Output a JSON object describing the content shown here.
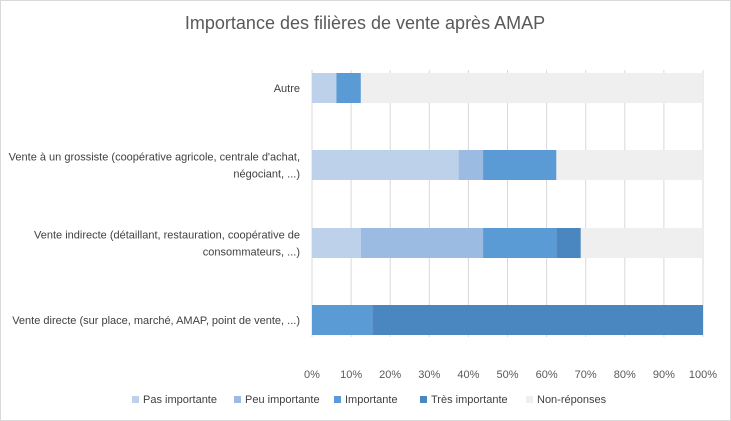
{
  "chart_data": {
    "type": "bar",
    "orientation": "horizontal",
    "stacked": true,
    "title": "Importance des filières de vente après AMAP",
    "xlabel": "",
    "ylabel": "",
    "xlim": [
      0,
      100
    ],
    "x_tick_labels": [
      "0%",
      "10%",
      "20%",
      "30%",
      "40%",
      "50%",
      "60%",
      "70%",
      "80%",
      "90%",
      "100%"
    ],
    "grid": true,
    "legend_position": "bottom",
    "categories": [
      {
        "lines": [
          "Autre"
        ]
      },
      {
        "lines": [
          "Vente à un grossiste (coopérative agricole, centrale d'achat,",
          "négociant, ...)"
        ]
      },
      {
        "lines": [
          "Vente indirecte (détaillant, restauration, coopérative de",
          "consommateurs, ...)"
        ]
      },
      {
        "lines": [
          "Vente directe (sur place, marché, AMAP, point de vente, ...)"
        ]
      }
    ],
    "series": [
      {
        "name": "Pas importante",
        "color": "#bdd1ea",
        "values": [
          6.25,
          37.5,
          12.5,
          0
        ]
      },
      {
        "name": "Peu importante",
        "color": "#9bbbe2",
        "values": [
          0,
          6.25,
          31.25,
          0
        ]
      },
      {
        "name": "Importante",
        "color": "#5a9bd5",
        "values": [
          6.25,
          18.75,
          18.75,
          15.4
        ]
      },
      {
        "name": "Très importante",
        "color": "#4a86bf",
        "values": [
          0,
          0,
          6.25,
          84.6
        ]
      },
      {
        "name": "Non-réponses",
        "color": "#efefef",
        "values": [
          87.5,
          37.5,
          31.25,
          0
        ]
      }
    ]
  }
}
